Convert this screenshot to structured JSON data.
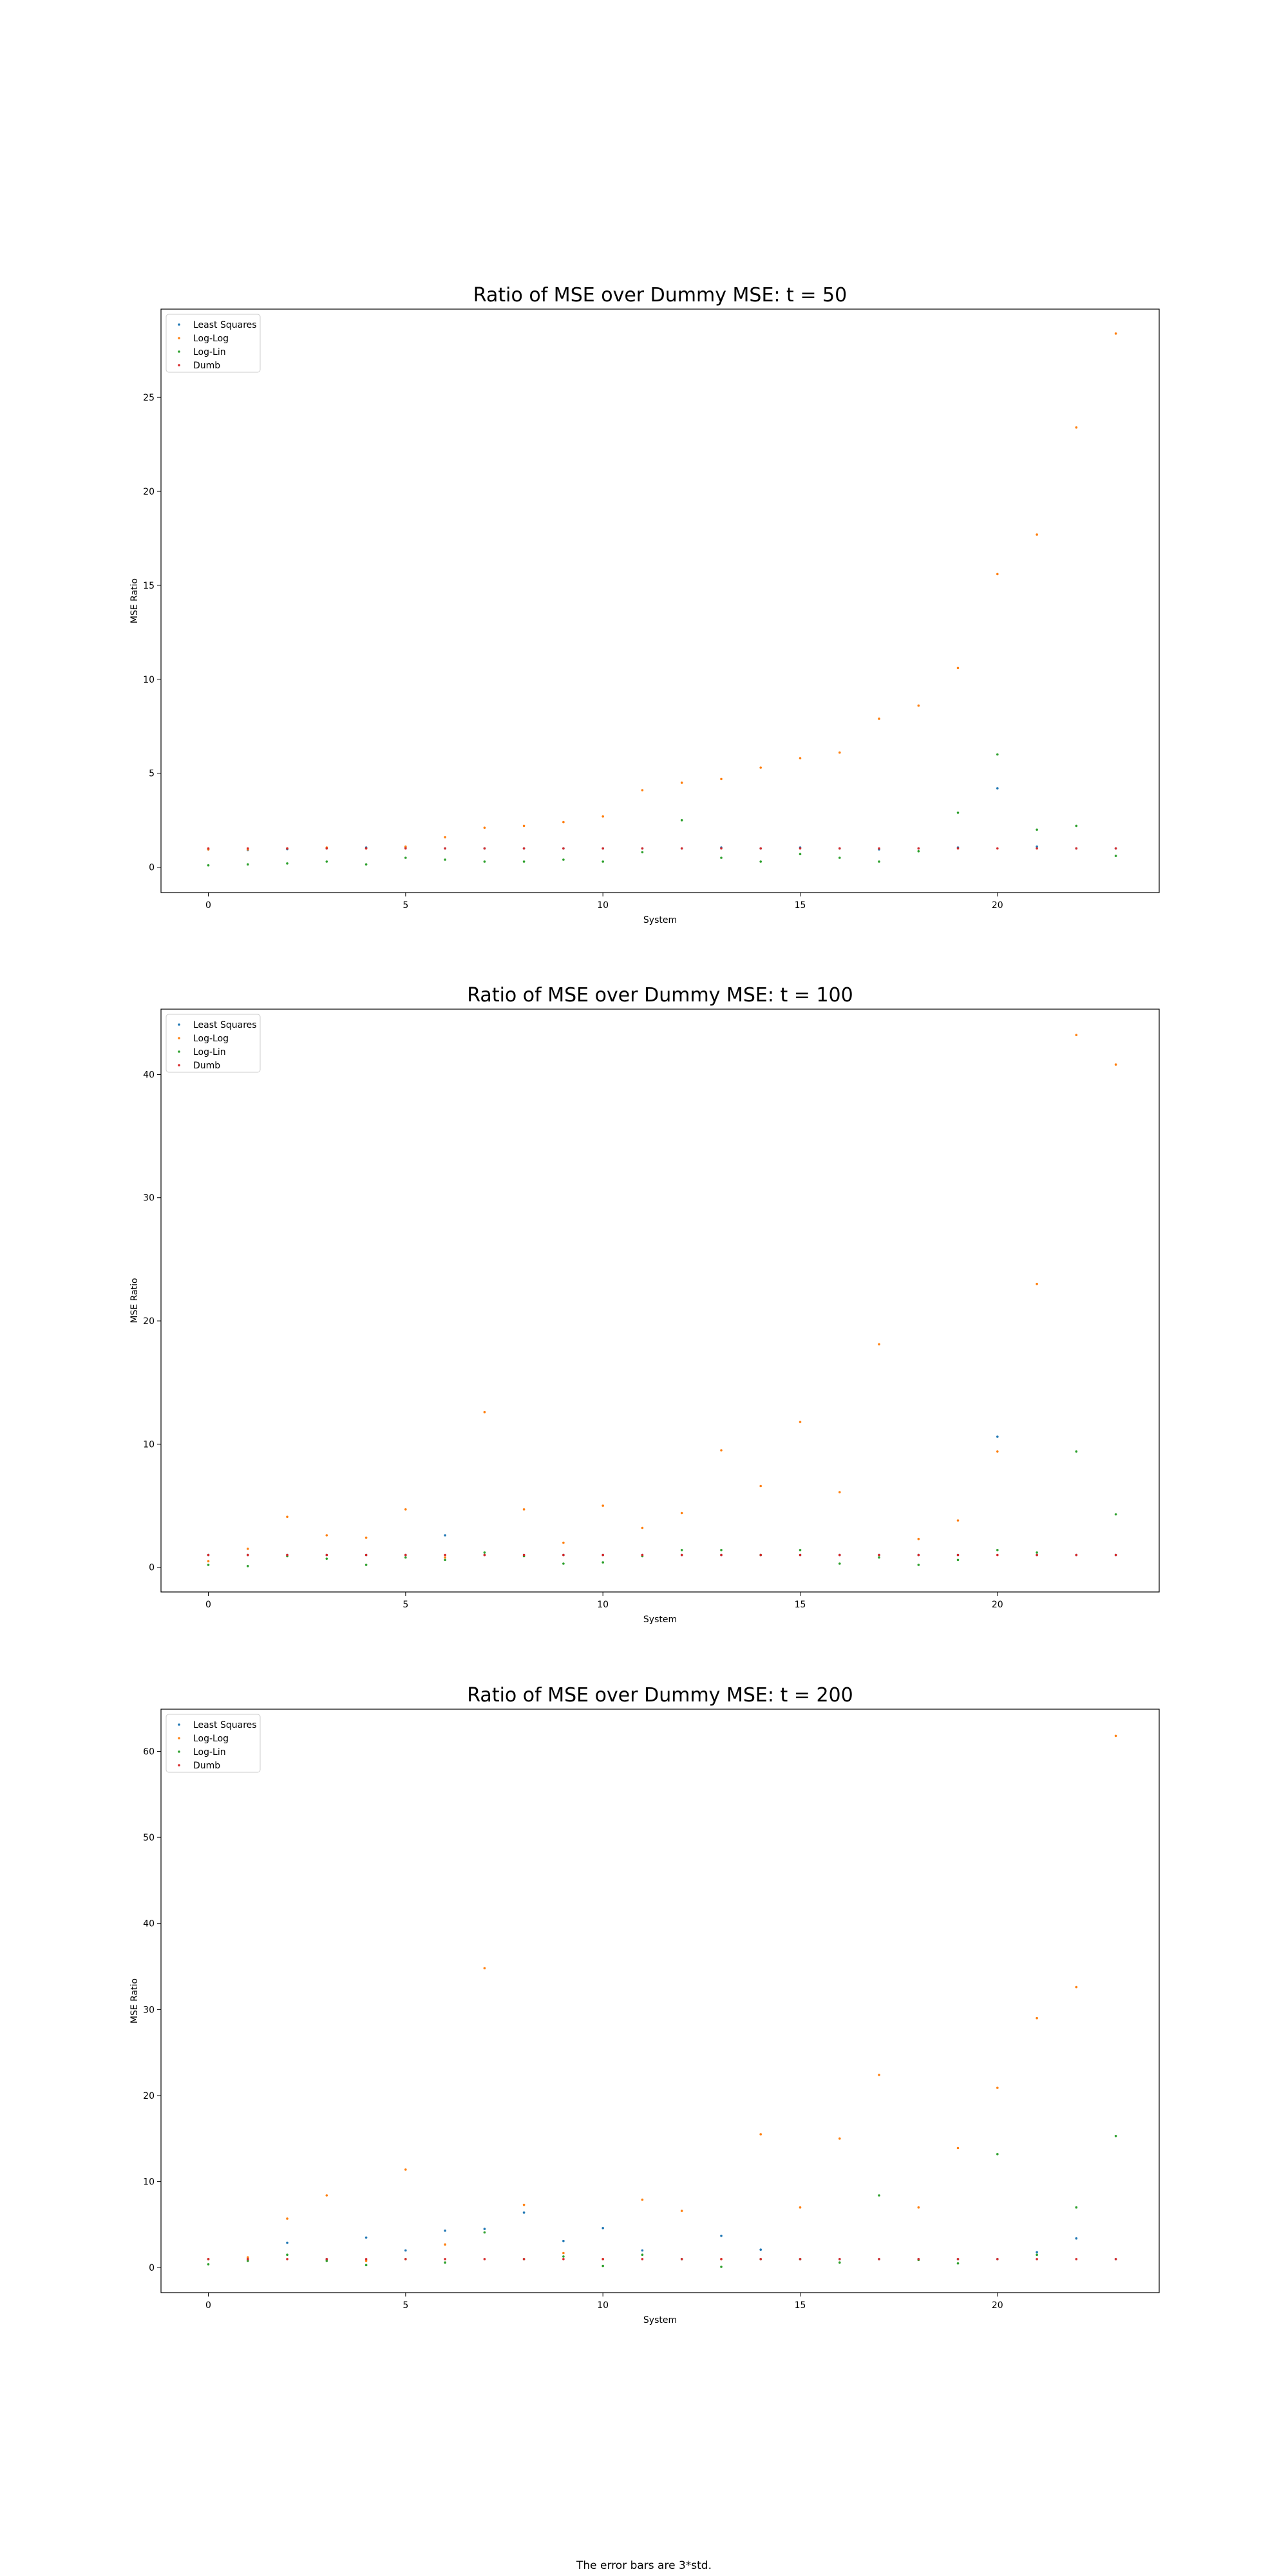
{
  "figure": {
    "footnote": "The error bars are 3*std."
  },
  "series_colors": {
    "Least Squares": "#1f77b4",
    "Log-Log": "#ff7f0e",
    "Log-Lin": "#2ca02c",
    "Dumb": "#d62728"
  },
  "chart_data": [
    {
      "type": "scatter",
      "title": "Ratio of MSE over Dummy MSE: t = 50",
      "xlabel": "System",
      "ylabel": "MSE Ratio",
      "xlim": [
        -1.2,
        24.1
      ],
      "ylim": [
        -1.35,
        29.7
      ],
      "xticks": [
        0,
        5,
        10,
        15,
        20
      ],
      "yticks": [
        0,
        5,
        10,
        15,
        20,
        25
      ],
      "legend_position": "upper left",
      "grid": false,
      "series": [
        {
          "name": "Least Squares",
          "x": [
            0,
            1,
            2,
            3,
            4,
            5,
            6,
            7,
            8,
            9,
            10,
            11,
            12,
            13,
            14,
            15,
            16,
            17,
            18,
            19,
            20,
            21,
            22,
            23
          ],
          "y": [
            0.95,
            0.92,
            0.96,
            1.0,
            1.05,
            1.05,
            1.0,
            1.0,
            1.0,
            1.0,
            1.0,
            1.0,
            1.0,
            1.05,
            1.0,
            1.05,
            1.0,
            0.95,
            1.0,
            1.05,
            4.2,
            1.1,
            1.0,
            1.0
          ]
        },
        {
          "name": "Log-Log",
          "x": [
            0,
            1,
            2,
            3,
            4,
            5,
            6,
            7,
            8,
            9,
            10,
            11,
            12,
            13,
            14,
            15,
            16,
            17,
            18,
            19,
            20,
            21,
            22,
            23
          ],
          "y": [
            0.95,
            0.95,
            1.0,
            1.05,
            1.0,
            1.1,
            1.6,
            2.1,
            2.2,
            2.4,
            2.7,
            4.1,
            4.5,
            4.7,
            5.3,
            5.8,
            6.1,
            7.9,
            8.6,
            10.6,
            15.6,
            17.7,
            23.4,
            28.4
          ]
        },
        {
          "name": "Log-Lin",
          "x": [
            0,
            1,
            2,
            3,
            4,
            5,
            6,
            7,
            8,
            9,
            10,
            11,
            12,
            13,
            14,
            15,
            16,
            17,
            18,
            19,
            20,
            21,
            22,
            23
          ],
          "y": [
            0.1,
            0.15,
            0.2,
            0.3,
            0.15,
            0.5,
            0.4,
            0.3,
            0.3,
            0.4,
            0.3,
            0.8,
            2.5,
            0.5,
            0.3,
            0.7,
            0.5,
            0.3,
            0.85,
            2.9,
            6.0,
            2.0,
            2.2,
            0.6
          ]
        },
        {
          "name": "Dumb",
          "x": [
            0,
            1,
            2,
            3,
            4,
            5,
            6,
            7,
            8,
            9,
            10,
            11,
            12,
            13,
            14,
            15,
            16,
            17,
            18,
            19,
            20,
            21,
            22,
            23
          ],
          "y": [
            1,
            1,
            1,
            1,
            1,
            1,
            1,
            1,
            1,
            1,
            1,
            1,
            1,
            1,
            1,
            1,
            1,
            1,
            1,
            1,
            1,
            1,
            1,
            1
          ]
        }
      ]
    },
    {
      "type": "scatter",
      "title": "Ratio of MSE over Dummy MSE: t = 100",
      "xlabel": "System",
      "ylabel": "MSE Ratio",
      "xlim": [
        -1.2,
        24.1
      ],
      "ylim": [
        -2.0,
        45.3
      ],
      "xticks": [
        0,
        5,
        10,
        15,
        20
      ],
      "yticks": [
        0,
        10,
        20,
        30,
        40
      ],
      "legend_position": "upper left",
      "grid": false,
      "series": [
        {
          "name": "Least Squares",
          "x": [
            0,
            1,
            2,
            3,
            4,
            5,
            6,
            7,
            8,
            9,
            10,
            11,
            12,
            13,
            14,
            15,
            16,
            17,
            18,
            19,
            20,
            21,
            22,
            23
          ],
          "y": [
            1.0,
            1.0,
            1.0,
            1.0,
            1.0,
            1.0,
            2.6,
            1.0,
            1.0,
            1.0,
            1.0,
            1.0,
            1.0,
            1.0,
            1.0,
            1.0,
            1.0,
            1.0,
            1.0,
            1.0,
            10.6,
            1.0,
            1.0,
            1.0
          ]
        },
        {
          "name": "Log-Log",
          "x": [
            0,
            1,
            2,
            3,
            4,
            5,
            6,
            7,
            8,
            9,
            10,
            11,
            12,
            13,
            14,
            15,
            16,
            17,
            18,
            19,
            20,
            21,
            22,
            23
          ],
          "y": [
            0.5,
            1.5,
            4.1,
            2.6,
            2.4,
            4.7,
            0.8,
            12.6,
            4.7,
            2.0,
            5.0,
            3.2,
            4.4,
            9.5,
            6.6,
            11.8,
            6.1,
            18.1,
            2.3,
            3.8,
            9.4,
            23.0,
            43.2,
            40.8
          ]
        },
        {
          "name": "Log-Lin",
          "x": [
            0,
            1,
            2,
            3,
            4,
            5,
            6,
            7,
            8,
            9,
            10,
            11,
            12,
            13,
            14,
            15,
            16,
            17,
            18,
            19,
            20,
            21,
            22,
            23
          ],
          "y": [
            0.2,
            0.1,
            0.9,
            0.7,
            0.2,
            0.8,
            0.6,
            1.2,
            0.9,
            0.3,
            0.4,
            0.9,
            1.4,
            1.4,
            1.0,
            1.4,
            0.3,
            0.8,
            0.2,
            0.6,
            1.4,
            1.2,
            9.4,
            4.3
          ]
        },
        {
          "name": "Dumb",
          "x": [
            0,
            1,
            2,
            3,
            4,
            5,
            6,
            7,
            8,
            9,
            10,
            11,
            12,
            13,
            14,
            15,
            16,
            17,
            18,
            19,
            20,
            21,
            22,
            23
          ],
          "y": [
            1,
            1,
            1,
            1,
            1,
            1,
            1,
            1,
            1,
            1,
            1,
            1,
            1,
            1,
            1,
            1,
            1,
            1,
            1,
            1,
            1,
            1,
            1,
            1
          ]
        }
      ]
    },
    {
      "type": "scatter",
      "title": "Ratio of MSE over Dummy MSE: t = 200",
      "xlabel": "System",
      "ylabel": "MSE Ratio",
      "xlim": [
        -1.2,
        24.1
      ],
      "ylim": [
        -2.9,
        64.9
      ],
      "xticks": [
        0,
        5,
        10,
        15,
        20
      ],
      "yticks": [
        0,
        10,
        20,
        30,
        40,
        50,
        60
      ],
      "legend_position": "upper left",
      "grid": false,
      "series": [
        {
          "name": "Least Squares",
          "x": [
            0,
            1,
            2,
            3,
            4,
            5,
            6,
            7,
            8,
            9,
            10,
            11,
            12,
            13,
            14,
            15,
            16,
            17,
            18,
            19,
            20,
            21,
            22,
            23
          ],
          "y": [
            1.0,
            1.0,
            2.9,
            1.0,
            3.5,
            2.0,
            4.3,
            4.5,
            6.4,
            3.1,
            4.6,
            2.0,
            1.0,
            3.7,
            2.1,
            1.0,
            1.0,
            1.0,
            1.0,
            1.0,
            1.0,
            1.8,
            3.4,
            1.0
          ]
        },
        {
          "name": "Log-Log",
          "x": [
            0,
            1,
            2,
            3,
            4,
            5,
            6,
            7,
            8,
            9,
            10,
            11,
            12,
            13,
            14,
            15,
            16,
            17,
            18,
            19,
            20,
            21,
            22,
            23
          ],
          "y": [
            1.0,
            1.2,
            5.7,
            8.4,
            0.8,
            11.4,
            2.7,
            34.8,
            7.3,
            1.7,
            1.0,
            7.9,
            6.6,
            1.0,
            15.5,
            7.0,
            15.0,
            22.4,
            7.0,
            13.9,
            20.9,
            29.0,
            32.6,
            61.8
          ]
        },
        {
          "name": "Log-Lin",
          "x": [
            0,
            1,
            2,
            3,
            4,
            5,
            6,
            7,
            8,
            9,
            10,
            11,
            12,
            13,
            14,
            15,
            16,
            17,
            18,
            19,
            20,
            21,
            22,
            23
          ],
          "y": [
            0.4,
            0.8,
            1.5,
            0.8,
            0.3,
            1.0,
            0.6,
            4.1,
            1.0,
            1.3,
            0.2,
            1.5,
            1.0,
            0.1,
            1.0,
            1.0,
            0.6,
            8.4,
            0.9,
            0.5,
            13.2,
            1.5,
            7.0,
            15.3
          ]
        },
        {
          "name": "Dumb",
          "x": [
            0,
            1,
            2,
            3,
            4,
            5,
            6,
            7,
            8,
            9,
            10,
            11,
            12,
            13,
            14,
            15,
            16,
            17,
            18,
            19,
            20,
            21,
            22,
            23
          ],
          "y": [
            1,
            1,
            1,
            1,
            1,
            1,
            1,
            1,
            1,
            1,
            1,
            1,
            1,
            1,
            1,
            1,
            1,
            1,
            1,
            1,
            1,
            1,
            1,
            1
          ]
        }
      ]
    }
  ]
}
